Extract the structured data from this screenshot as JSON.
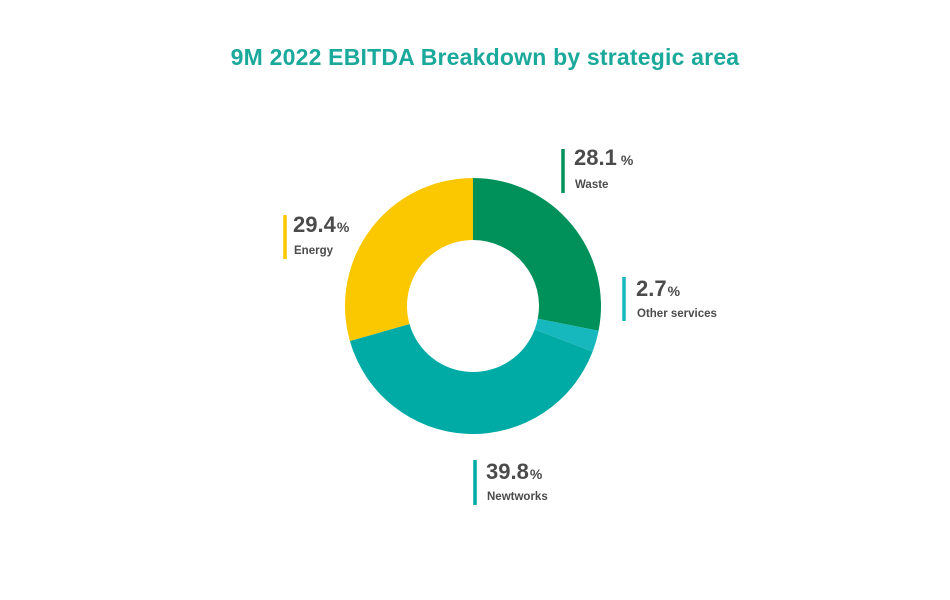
{
  "chart_data": {
    "type": "pie",
    "variant": "donut",
    "title": "9M 2022 EBITDA Breakdown by strategic area",
    "unit": "%",
    "slices": [
      {
        "label": "Waste",
        "value": 28.1,
        "display": "28.1",
        "color": "#00905a"
      },
      {
        "label": "Other services",
        "value": 2.7,
        "display": "2.7",
        "color": "#16b8bd"
      },
      {
        "label": "Newtworks",
        "value": 39.8,
        "display": "39.8",
        "color": "#00aba6"
      },
      {
        "label": "Energy",
        "value": 29.4,
        "display": "29.4",
        "color": "#fbc800"
      }
    ],
    "colors": {
      "title": "#1ba99c",
      "label_text": "#4b4b4b"
    }
  }
}
